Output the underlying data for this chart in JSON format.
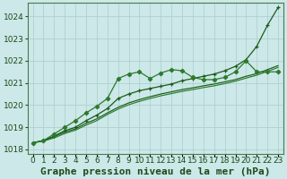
{
  "title": "",
  "xlabel": "Graphe pression niveau de la mer (hPa)",
  "ylabel": "",
  "bg_color": "#cce8e8",
  "plot_bg_color": "#cce8e8",
  "grid_color": "#aacccc",
  "line_color_dark": "#1a5c1a",
  "line_color_mid": "#2d7a2d",
  "xlim": [
    -0.5,
    23.5
  ],
  "ylim": [
    1017.8,
    1024.6
  ],
  "yticks": [
    1018,
    1019,
    1020,
    1021,
    1022,
    1023,
    1024
  ],
  "xticks": [
    0,
    1,
    2,
    3,
    4,
    5,
    6,
    7,
    8,
    9,
    10,
    11,
    12,
    13,
    14,
    15,
    16,
    17,
    18,
    19,
    20,
    21,
    22,
    23
  ],
  "series_jagged": [
    1018.3,
    1018.4,
    1018.7,
    1019.0,
    1019.3,
    1019.65,
    1019.95,
    1020.3,
    1021.2,
    1021.4,
    1021.5,
    1021.2,
    1021.45,
    1021.6,
    1021.55,
    1021.25,
    1021.15,
    1021.15,
    1021.25,
    1021.5,
    1022.0,
    1021.5,
    1021.5,
    1021.5
  ],
  "series_steep": [
    1018.3,
    1018.4,
    1018.6,
    1018.85,
    1019.0,
    1019.3,
    1019.55,
    1019.85,
    1020.3,
    1020.5,
    1020.65,
    1020.75,
    1020.85,
    1020.95,
    1021.1,
    1021.2,
    1021.3,
    1021.4,
    1021.55,
    1021.75,
    1022.05,
    1022.65,
    1023.6,
    1024.4
  ],
  "series_trend1": [
    1018.3,
    1018.4,
    1018.58,
    1018.78,
    1018.93,
    1019.18,
    1019.38,
    1019.65,
    1019.9,
    1020.1,
    1020.25,
    1020.38,
    1020.5,
    1020.6,
    1020.7,
    1020.78,
    1020.87,
    1020.95,
    1021.05,
    1021.15,
    1021.3,
    1021.42,
    1021.6,
    1021.78
  ],
  "series_trend2": [
    1018.3,
    1018.38,
    1018.52,
    1018.72,
    1018.87,
    1019.1,
    1019.3,
    1019.58,
    1019.82,
    1020.02,
    1020.17,
    1020.3,
    1020.42,
    1020.52,
    1020.62,
    1020.7,
    1020.79,
    1020.87,
    1020.97,
    1021.08,
    1021.22,
    1021.35,
    1021.52,
    1021.7
  ],
  "xlabel_fontsize": 8,
  "tick_fontsize": 6.5
}
